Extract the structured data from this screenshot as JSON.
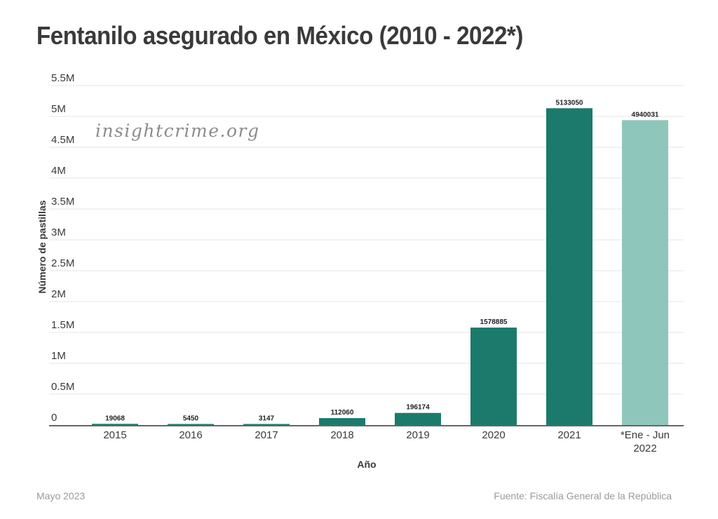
{
  "colors": {
    "bar": "#1b7a6b",
    "bar_highlight": "#8fc6bb",
    "grid": "#e6e6e6",
    "axis": "#666666",
    "text": "#3a3a3a",
    "muted": "#9a9a9a"
  },
  "watermark": "insightcrime.org",
  "footer": {
    "date": "Mayo 2023",
    "source": "Fuente: Fiscalía General de la República"
  },
  "chart_data": {
    "type": "bar",
    "title": "Fentanilo asegurado en México (2010 - 2022*)",
    "xlabel": "Año",
    "ylabel": "Número de pastillas",
    "categories": [
      "2015",
      "2016",
      "2017",
      "2018",
      "2019",
      "2020",
      "2021",
      "*Ene - Jun 2022"
    ],
    "category_lines": [
      [
        "2015"
      ],
      [
        "2016"
      ],
      [
        "2017"
      ],
      [
        "2018"
      ],
      [
        "2019"
      ],
      [
        "2020"
      ],
      [
        "2021"
      ],
      [
        "*Ene - Jun",
        "2022"
      ]
    ],
    "values": [
      19068,
      5450,
      3147,
      112060,
      196174,
      1578885,
      5133050,
      4940031
    ],
    "data_labels": [
      "19068",
      "5450",
      "3147",
      "112060",
      "196174",
      "1578885",
      "5133050",
      "4940031"
    ],
    "highlight": [
      false,
      false,
      false,
      false,
      false,
      false,
      false,
      true
    ],
    "ylim": [
      0,
      5500000
    ],
    "yticks": [
      0,
      500000,
      1000000,
      1500000,
      2000000,
      2500000,
      3000000,
      3500000,
      4000000,
      4500000,
      5000000,
      5500000
    ],
    "ytick_labels": [
      "0",
      "0.5M",
      "1M",
      "1.5M",
      "2M",
      "2.5M",
      "3M",
      "3.5M",
      "4M",
      "4.5M",
      "5M",
      "5.5M"
    ],
    "grid": true,
    "legend": "none"
  }
}
